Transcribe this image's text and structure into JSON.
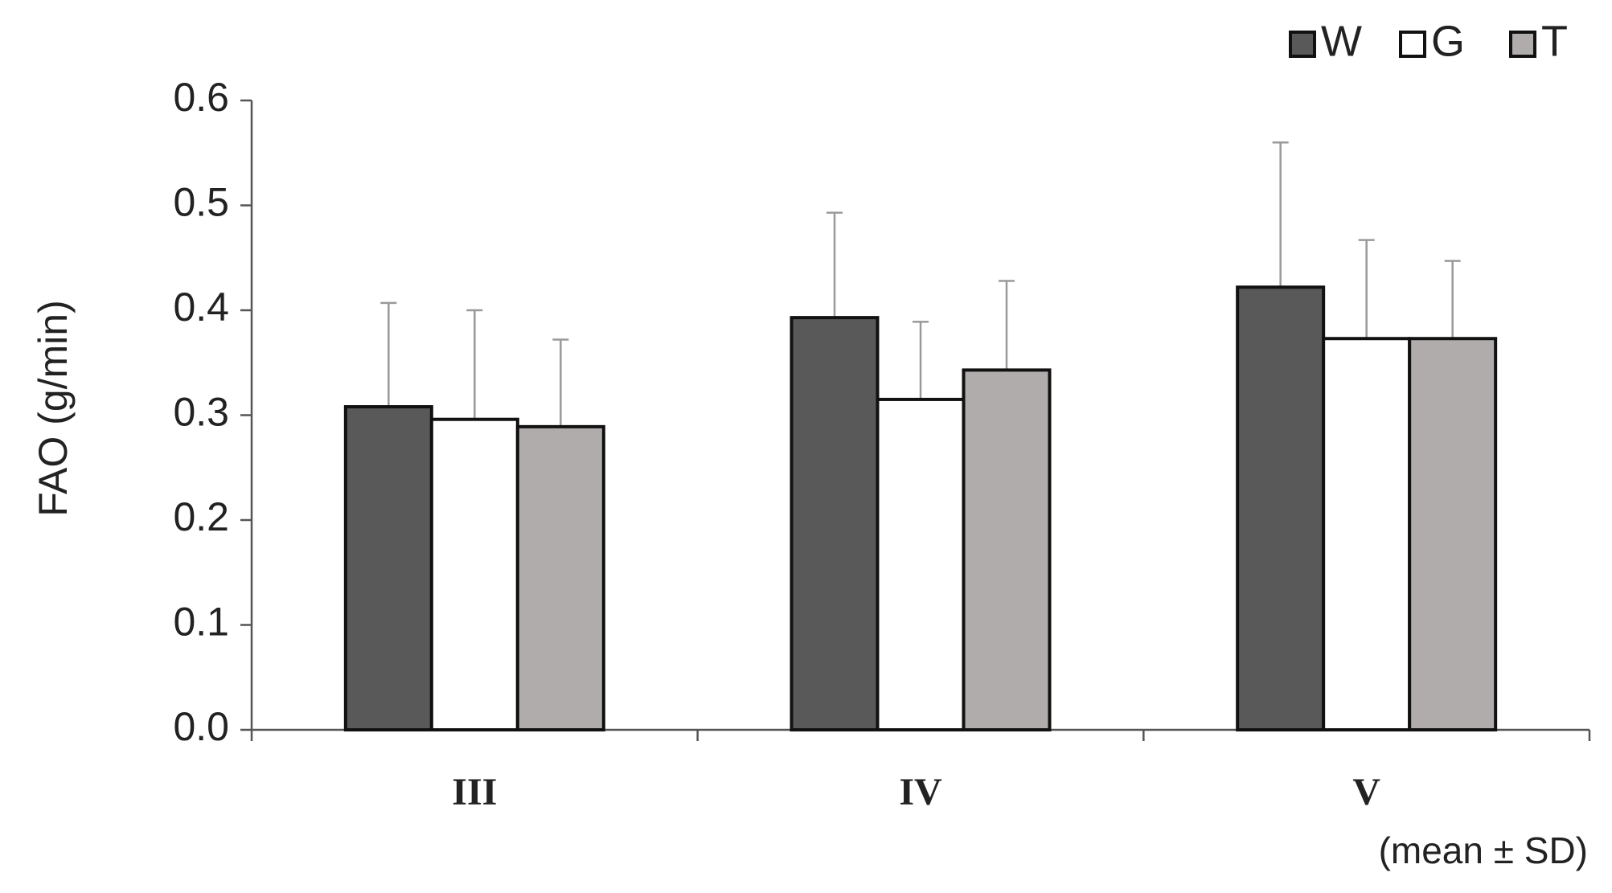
{
  "chart_data": {
    "type": "bar",
    "y_label": "FAO (g/min)",
    "annotation": "(mean ± SD)",
    "categories": [
      "III",
      "IV",
      "V"
    ],
    "series": [
      {
        "name": "W",
        "color": "#595959",
        "values": [
          0.308,
          0.393,
          0.422
        ],
        "errors": [
          0.099,
          0.1,
          0.138
        ]
      },
      {
        "name": "G",
        "color": "#ffffff",
        "values": [
          0.296,
          0.315,
          0.373
        ],
        "errors": [
          0.104,
          0.074,
          0.094
        ]
      },
      {
        "name": "T",
        "color": "#b0acab",
        "values": [
          0.289,
          0.343,
          0.373
        ],
        "errors": [
          0.083,
          0.085,
          0.074
        ]
      }
    ],
    "ylim": [
      0,
      0.6
    ],
    "yticks": [
      {
        "value": 0,
        "label": "0.0"
      },
      0.1,
      0.2,
      0.3,
      0.4,
      0.5,
      0.6
    ],
    "legend": "top-right",
    "grid": false
  }
}
